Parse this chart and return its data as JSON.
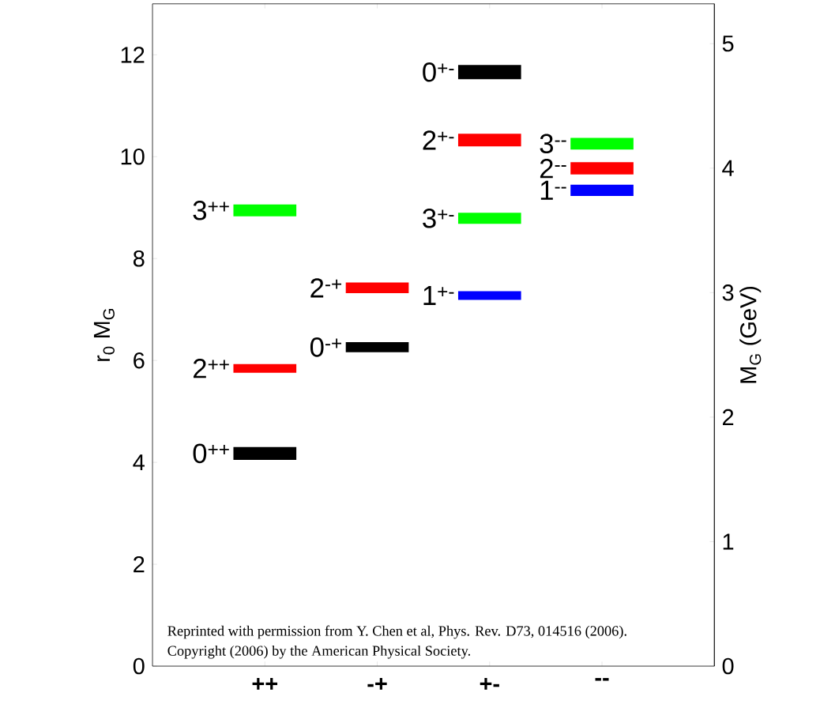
{
  "chart_data": {
    "type": "bar",
    "categories": [
      "++",
      "-+",
      "+-",
      "--"
    ],
    "series": [
      {
        "name": "0$^{++}$",
        "color": "#000000",
        "values": [
          0.25,
          null,
          null,
          null
        ],
        "base": [
          4.05,
          null,
          null,
          null
        ]
      },
      {
        "name": "2$^{++}$",
        "color": "#ff0000",
        "values": [
          0.17,
          null,
          null,
          null
        ],
        "base": [
          5.76,
          null,
          null,
          null
        ]
      },
      {
        "name": "3$^{++}$",
        "color": "#00ff00",
        "values": [
          0.23,
          null,
          null,
          null
        ],
        "base": [
          8.83,
          null,
          null,
          null
        ]
      },
      {
        "name": "0$^{-+}$",
        "color": "#000000",
        "values": [
          null,
          0.2,
          null,
          null
        ],
        "base": [
          null,
          6.16,
          null,
          null
        ]
      },
      {
        "name": "2$^{-+}$",
        "color": "#ff0000",
        "values": [
          null,
          0.21,
          null,
          null
        ],
        "base": [
          null,
          7.32,
          null,
          null
        ]
      },
      {
        "name": "1$^{+-}$",
        "color": "#0000ff",
        "values": [
          null,
          null,
          0.17,
          null
        ],
        "base": [
          null,
          null,
          7.19,
          null
        ]
      },
      {
        "name": "3$^{+-}$",
        "color": "#00ff00",
        "values": [
          null,
          null,
          0.22,
          null
        ],
        "base": [
          null,
          null,
          8.68,
          null
        ]
      },
      {
        "name": "2$^{+-}$",
        "color": "#ff0000",
        "values": [
          null,
          null,
          0.25,
          null
        ],
        "base": [
          null,
          null,
          10.2,
          null
        ]
      },
      {
        "name": "0$^{+-}$",
        "color": "#000000",
        "values": [
          null,
          null,
          0.28,
          null
        ],
        "base": [
          null,
          null,
          11.52,
          null
        ]
      },
      {
        "name": "1$^{--}$",
        "color": "#0000ff",
        "values": [
          null,
          null,
          null,
          0.22
        ],
        "base": [
          null,
          null,
          null,
          9.23
        ]
      },
      {
        "name": "2$^{--}$",
        "color": "#ff0000",
        "values": [
          null,
          null,
          null,
          0.24
        ],
        "base": [
          null,
          null,
          null,
          9.65
        ]
      },
      {
        "name": "3$^{--}$",
        "color": "#00ff00",
        "values": [
          null,
          null,
          null,
          0.23
        ],
        "base": [
          null,
          null,
          null,
          10.14
        ]
      }
    ],
    "ylabel": "r$_{0}$ M$_{G}$",
    "y2label": "M$_{G}$ (GeV)",
    "ylim": [
      0,
      13.0
    ],
    "yticks": [
      0,
      2,
      4,
      6,
      8,
      10,
      12
    ],
    "y2lim": [
      0,
      5.32
    ],
    "y2ticks": [
      0,
      1,
      2,
      3,
      4,
      5
    ],
    "annotations": [
      "Reprinted with permission from Y. Chen et al, Phys. Rev. D73, 014516 (2006).",
      "Copyright (2006) by the American Physical Society."
    ]
  }
}
